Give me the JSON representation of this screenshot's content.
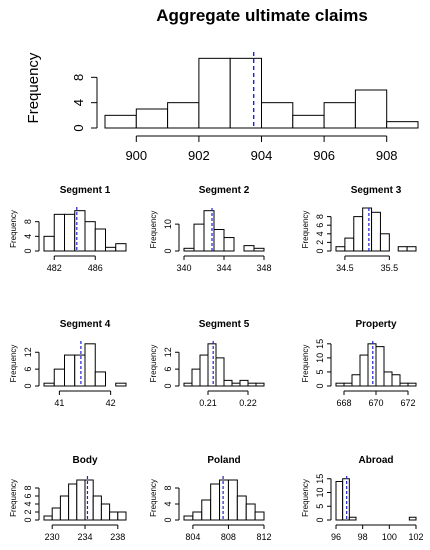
{
  "title": "Aggregate ultimate claims",
  "colors": {
    "bar_fill": "#ffffff",
    "bar_stroke": "#000000",
    "marker": "#1f1fd6"
  },
  "chart_data": [
    {
      "type": "bar",
      "title": "Aggregate ultimate claims",
      "ylabel": "Frequency",
      "breaks": [
        899,
        900,
        901,
        902,
        903,
        904,
        905,
        906,
        907,
        908,
        909
      ],
      "values": [
        2,
        3,
        4,
        11,
        11,
        4,
        2,
        4,
        6,
        1
      ],
      "xticks": [
        900,
        902,
        904,
        906,
        908
      ],
      "yticks": [
        0,
        4,
        8
      ],
      "xlim": [
        899,
        909
      ],
      "ylim": [
        0,
        12
      ],
      "marker": 903.75
    },
    {
      "type": "bar",
      "title": "Segment 1",
      "ylabel": "Frequency",
      "breaks": [
        481,
        482,
        483,
        484,
        485,
        486,
        487,
        488,
        489
      ],
      "values": [
        4,
        10,
        10,
        11,
        8,
        6,
        1,
        2
      ],
      "xticks": [
        482,
        486
      ],
      "yticks": [
        0,
        4,
        8
      ],
      "xlim": [
        481,
        489
      ],
      "ylim": [
        0,
        12
      ],
      "marker": 484.2
    },
    {
      "type": "bar",
      "title": "Segment 2",
      "ylabel": "Frequency",
      "breaks": [
        340,
        341,
        342,
        343,
        344,
        345,
        346,
        347,
        348
      ],
      "values": [
        1,
        10,
        15,
        8,
        5,
        0,
        2,
        1
      ],
      "xticks": [
        340,
        344,
        348
      ],
      "yticks": [
        0,
        10
      ],
      "xlim": [
        340,
        348
      ],
      "ylim": [
        0,
        16
      ],
      "marker": 342.8
    },
    {
      "type": "bar",
      "title": "Segment 3",
      "ylabel": "Frequency",
      "breaks": [
        34.3,
        34.5,
        34.7,
        34.9,
        35.1,
        35.3,
        35.5,
        35.7,
        35.9,
        36.1
      ],
      "values": [
        1,
        3,
        8,
        10,
        9,
        4,
        0,
        1,
        1
      ],
      "xticks": [
        34.5,
        35.5
      ],
      "yticks": [
        0,
        2,
        4,
        6,
        8
      ],
      "xlim": [
        34.3,
        36.1
      ],
      "ylim": [
        0,
        10
      ],
      "marker": 35.04
    },
    {
      "type": "bar",
      "title": "Segment 4",
      "ylabel": "Frequency",
      "breaks": [
        40.7,
        40.9,
        41.1,
        41.3,
        41.5,
        41.7,
        41.9,
        42.1,
        42.3
      ],
      "values": [
        1,
        6,
        11,
        11,
        15,
        5,
        0,
        1
      ],
      "xticks": [
        41.0,
        42.0
      ],
      "yticks": [
        0,
        6,
        12
      ],
      "xlim": [
        40.7,
        42.3
      ],
      "ylim": [
        0,
        16
      ],
      "marker": 41.42
    },
    {
      "type": "bar",
      "title": "Segment 5",
      "ylabel": "Frequency",
      "breaks": [
        0.204,
        0.206,
        0.208,
        0.21,
        0.212,
        0.214,
        0.216,
        0.218,
        0.22,
        0.222,
        0.224
      ],
      "values": [
        1,
        6,
        11,
        15,
        10,
        2,
        1,
        2,
        1,
        1
      ],
      "xticks": [
        0.21,
        0.22
      ],
      "yticks": [
        0,
        6,
        12
      ],
      "xlim": [
        0.204,
        0.224
      ],
      "ylim": [
        0,
        16
      ],
      "marker": 0.2113
    },
    {
      "type": "bar",
      "title": "Property",
      "ylabel": "Frequency",
      "breaks": [
        667.5,
        668,
        668.5,
        669,
        669.5,
        670,
        670.5,
        671,
        671.5,
        672,
        672.5
      ],
      "values": [
        1,
        1,
        4,
        11,
        15,
        14,
        5,
        4,
        1,
        1
      ],
      "xticks": [
        668,
        670,
        672
      ],
      "yticks": [
        0,
        5,
        10,
        15
      ],
      "xlim": [
        667.5,
        672.5
      ],
      "ylim": [
        0,
        16
      ],
      "marker": 669.8
    },
    {
      "type": "bar",
      "title": "Body",
      "ylabel": "Frequency",
      "breaks": [
        229,
        230,
        231,
        232,
        233,
        234,
        235,
        236,
        237,
        238,
        239
      ],
      "values": [
        1,
        3,
        6,
        9,
        10,
        10,
        6,
        4,
        2,
        2
      ],
      "xticks": [
        230,
        234,
        238
      ],
      "yticks": [
        0,
        2,
        4,
        6,
        8
      ],
      "xlim": [
        229,
        239
      ],
      "ylim": [
        0,
        11
      ],
      "marker": 234.3
    },
    {
      "type": "bar",
      "title": "Poland",
      "ylabel": "Frequency",
      "breaks": [
        803,
        804,
        805,
        806,
        807,
        808,
        809,
        810,
        811,
        812
      ],
      "values": [
        1,
        2,
        5,
        9,
        10,
        10,
        6,
        4,
        2
      ],
      "xticks": [
        804,
        808,
        812
      ],
      "yticks": [
        0,
        4,
        8
      ],
      "xlim": [
        803,
        812
      ],
      "ylim": [
        0,
        11
      ],
      "marker": 807.4
    },
    {
      "type": "bar",
      "title": "Abroad",
      "ylabel": "Frequency",
      "breaks": [
        96,
        96.5,
        97,
        97.5,
        98,
        98.5,
        99,
        99.5,
        100,
        100.5,
        101,
        101.5,
        102
      ],
      "values": [
        14,
        15,
        1,
        0,
        0,
        0,
        0,
        0,
        0,
        0,
        0,
        1
      ],
      "xticks": [
        96,
        98,
        100,
        102
      ],
      "yticks": [
        0,
        5,
        10,
        15
      ],
      "xlim": [
        96,
        102
      ],
      "ylim": [
        0,
        16
      ],
      "marker": 96.8
    }
  ]
}
